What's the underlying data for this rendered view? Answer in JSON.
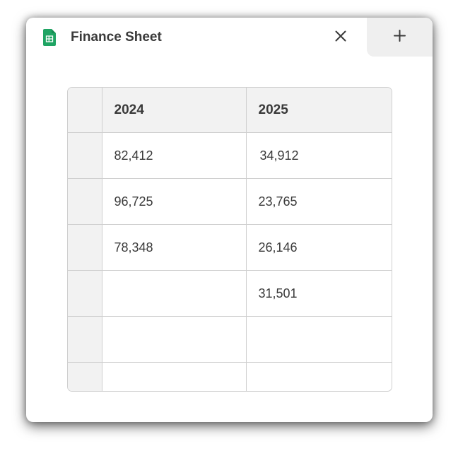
{
  "window": {
    "title": "Finance Sheet",
    "app_icon": "google-sheets-icon",
    "close_icon": "close-icon",
    "new_tab_icon": "plus-icon",
    "accent_color": "#1fa463"
  },
  "sheet": {
    "columns": [
      "2024",
      "2025"
    ],
    "rows": [
      [
        "82,412",
        "34,912"
      ],
      [
        "96,725",
        "23,765"
      ],
      [
        "78,348",
        "26,146"
      ],
      [
        "",
        "31,501"
      ],
      [
        "",
        ""
      ],
      [
        "",
        ""
      ]
    ]
  }
}
